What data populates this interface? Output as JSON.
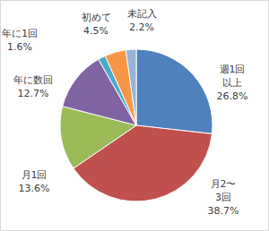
{
  "chart_data": {
    "type": "pie",
    "categories": [
      "週1回\n以上",
      "月2〜\n3回",
      "月1回",
      "年に数回",
      "年に1回",
      "初めて",
      "未記入"
    ],
    "values": [
      26.8,
      38.7,
      13.6,
      12.7,
      1.6,
      4.5,
      2.2
    ],
    "value_labels": [
      "26.8%",
      "38.7%",
      "13.6%",
      "12.7%",
      "1.6%",
      "4.5%",
      "2.2%"
    ],
    "colors": [
      "#4F81BD",
      "#C0504D",
      "#9BBB59",
      "#8064A2",
      "#4BACC6",
      "#F79646",
      "#95B3D7"
    ],
    "data_labels": true
  }
}
